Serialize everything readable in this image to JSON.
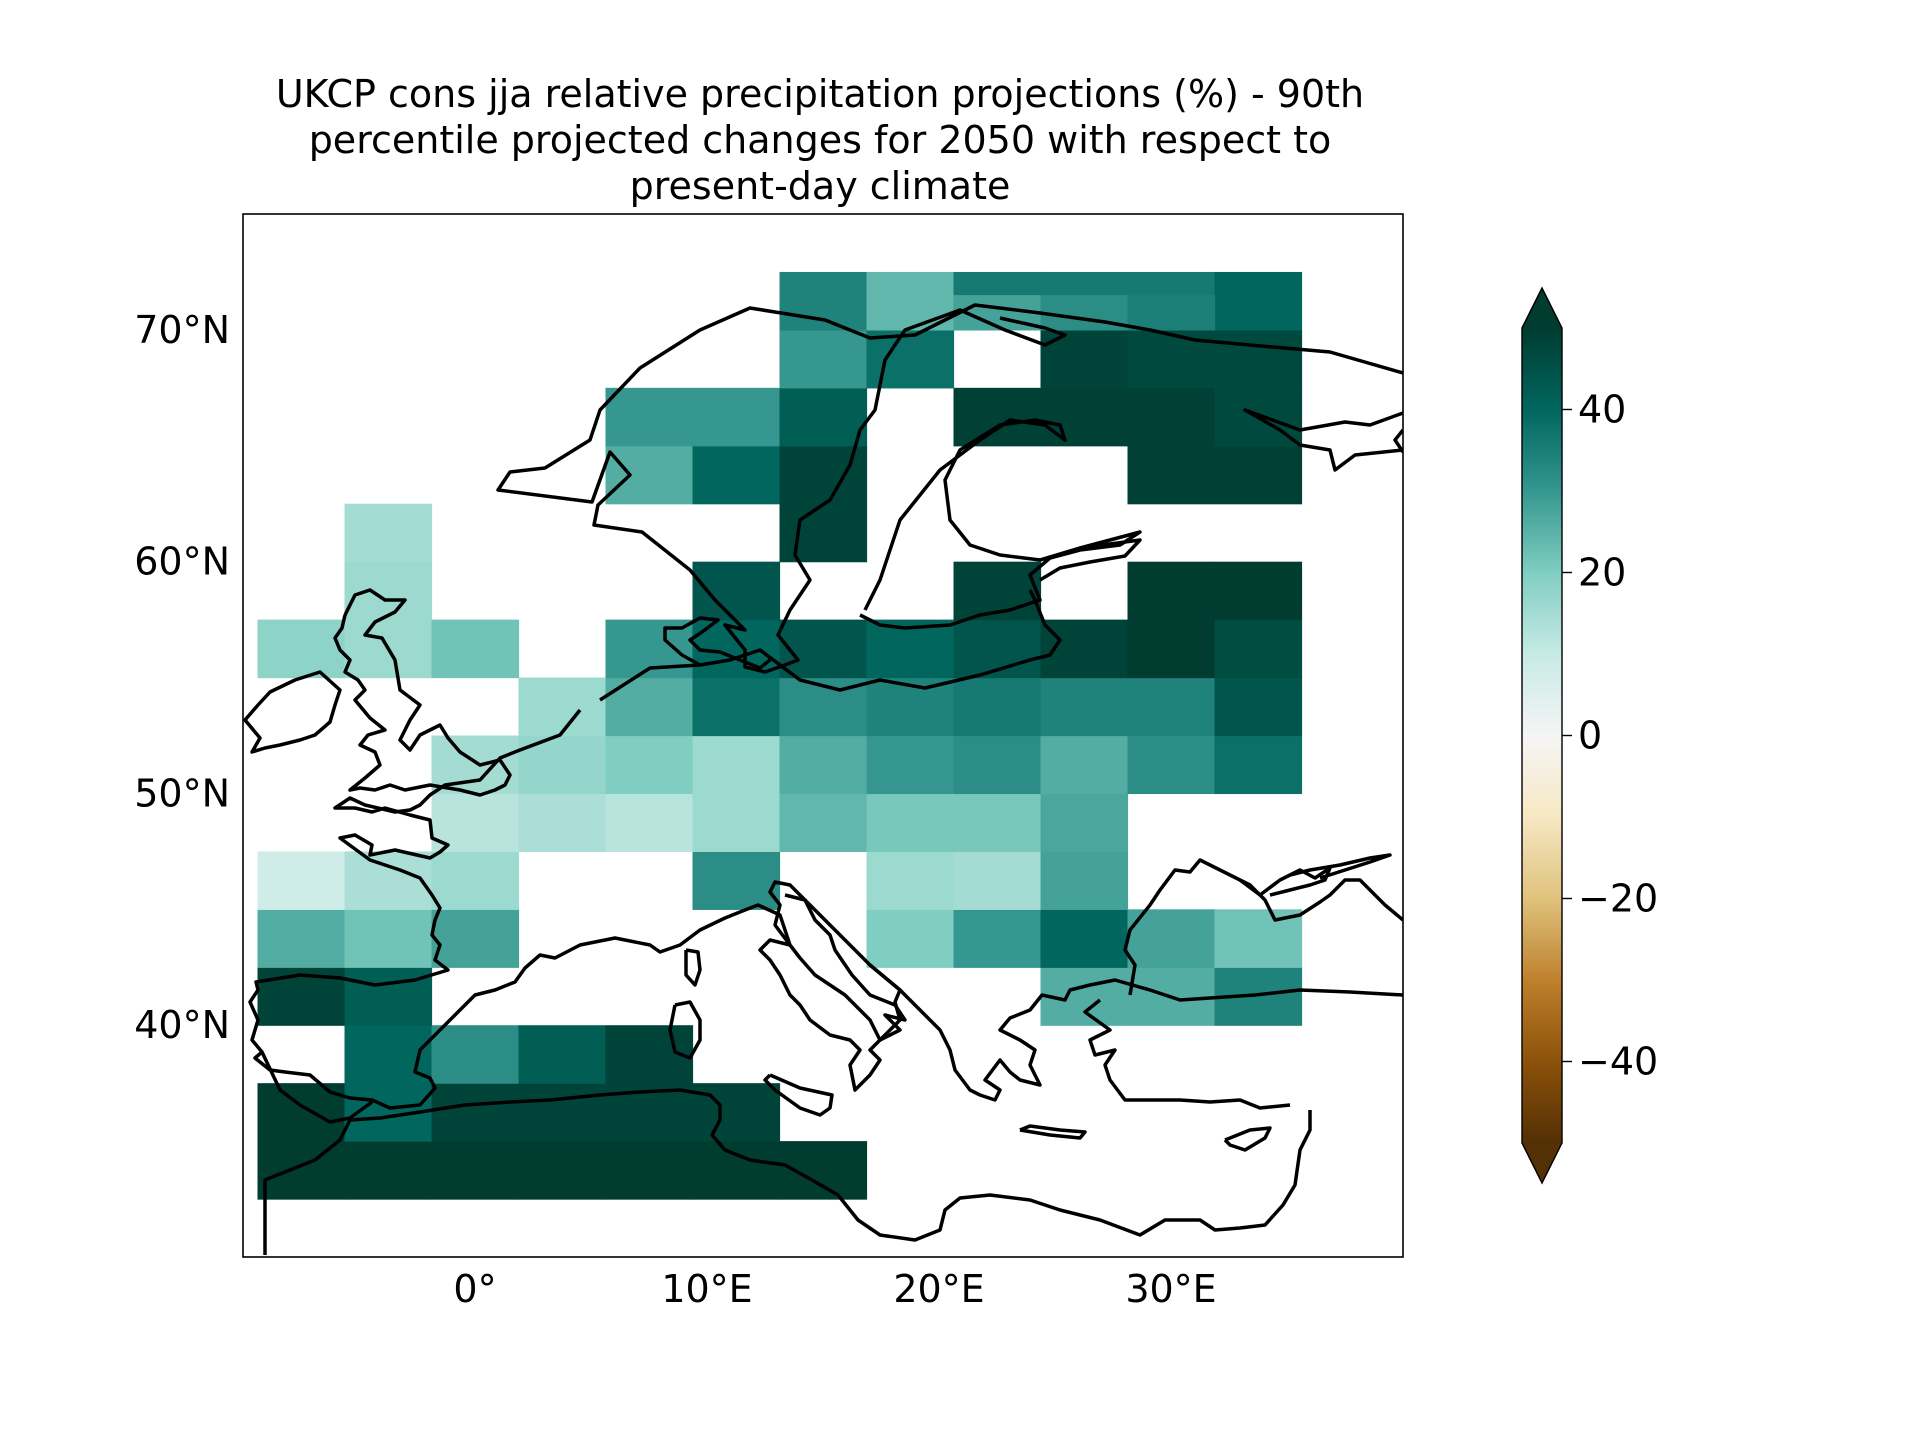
{
  "chart_data": {
    "type": "heatmap",
    "title": "UKCP cons jja relative precipitation projections (%) - 90th percentile projected changes for 2050 with respect to present-day climate",
    "title_lines": [
      "UKCP cons jja relative precipitation projections (%) - 90th",
      "percentile projected changes for 2050 with respect to",
      "present-day climate"
    ],
    "xlim": [
      -10,
      40
    ],
    "ylim": [
      30,
      75
    ],
    "x_ticks": [
      0,
      10,
      20,
      30
    ],
    "x_tick_labels": [
      "0°",
      "10°E",
      "20°E",
      "30°E"
    ],
    "y_ticks": [
      40,
      50,
      60,
      70
    ],
    "y_tick_labels": [
      "40°N",
      "50°N",
      "60°N",
      "70°N"
    ],
    "colorbar": {
      "colormap": "BrBG",
      "vmin": -50,
      "vmax": 50,
      "extend": "both",
      "ticks": [
        -40,
        -20,
        0,
        20,
        40
      ],
      "tick_labels": [
        "−40",
        "−20",
        "0",
        "20",
        "40"
      ]
    },
    "grid": {
      "lon_start": -9.375,
      "lat_start": 30.0,
      "dlon": 3.75,
      "dlat": 2.5,
      "ncols": 12,
      "nrows": 17,
      "note_rows": "row 0 = southernmost band, null = no data",
      "values": [
        [
          null,
          null,
          null,
          null,
          null,
          null,
          null,
          null,
          null,
          null,
          null,
          null
        ],
        [
          50,
          50,
          50,
          50,
          50,
          50,
          50,
          null,
          null,
          null,
          null,
          null
        ],
        [
          50,
          40,
          48,
          48,
          48,
          48,
          null,
          null,
          null,
          null,
          null,
          null
        ],
        [
          null,
          40,
          32,
          42,
          48,
          null,
          null,
          null,
          null,
          null,
          null,
          null
        ],
        [
          48,
          42,
          null,
          null,
          null,
          null,
          null,
          null,
          null,
          26,
          26,
          34
        ],
        [
          26,
          22,
          28,
          null,
          null,
          null,
          null,
          20,
          30,
          40,
          28,
          22
        ],
        [
          8,
          14,
          16,
          null,
          null,
          32,
          null,
          16,
          15,
          28,
          null,
          null
        ],
        [
          null,
          null,
          12,
          14,
          12,
          16,
          24,
          21,
          21,
          27,
          null,
          null
        ],
        [
          null,
          null,
          15,
          17,
          20,
          16,
          26,
          30,
          32,
          26,
          32,
          38
        ],
        [
          null,
          null,
          null,
          16,
          26,
          38,
          32,
          34,
          36,
          34,
          34,
          44
        ],
        [
          18,
          16,
          22,
          null,
          30,
          40,
          44,
          40,
          44,
          48,
          50,
          46
        ],
        [
          null,
          16,
          null,
          null,
          null,
          44,
          null,
          null,
          48,
          null,
          50,
          50
        ],
        [
          null,
          15,
          null,
          null,
          null,
          null,
          48,
          null,
          null,
          null,
          null,
          null
        ],
        [
          null,
          null,
          null,
          null,
          26,
          40,
          48,
          null,
          null,
          null,
          49,
          49
        ],
        [
          null,
          null,
          null,
          null,
          30,
          30,
          42,
          null,
          49,
          49,
          49,
          47
        ],
        [
          null,
          null,
          null,
          null,
          null,
          null,
          30,
          38,
          null,
          48,
          47,
          47
        ],
        [
          null,
          null,
          null,
          null,
          null,
          null,
          34,
          24,
          36,
          36,
          36,
          40
        ]
      ],
      "top_row": {
        "lat_start": 70.0,
        "values": [
          null,
          null,
          null,
          null,
          null,
          null,
          null,
          null,
          28,
          32,
          35,
          null
        ]
      }
    }
  }
}
